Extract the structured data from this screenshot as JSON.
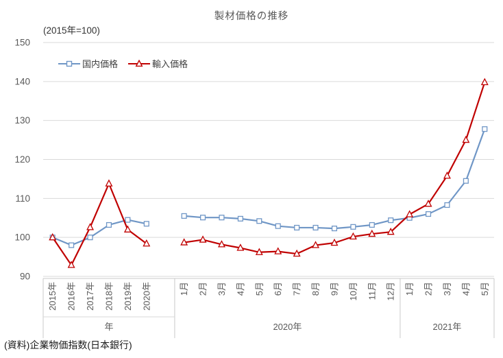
{
  "chart_data": {
    "type": "line",
    "title": "製材価格の推移",
    "note": "(2015年=100)",
    "source": "(資料)企業物価指数(日本銀行)",
    "ylim": [
      90,
      150
    ],
    "yticks": [
      90,
      100,
      110,
      120,
      130,
      140,
      150
    ],
    "grid": "horizontal",
    "legend_position": "top-left-inside",
    "groups": [
      {
        "label": "年",
        "categories": [
          "2015年",
          "2016年",
          "2017年",
          "2018年",
          "2019年",
          "2020年"
        ]
      },
      {
        "label": "2020年",
        "categories": [
          "1月",
          "2月",
          "3月",
          "4月",
          "5月",
          "6月",
          "7月",
          "8月",
          "9月",
          "10月",
          "11月",
          "12月"
        ]
      },
      {
        "label": "2021年",
        "categories": [
          "1月",
          "2月",
          "3月",
          "4月",
          "5月"
        ]
      }
    ],
    "series": [
      {
        "name": "国内価格",
        "marker": "square",
        "color": "#6F96C6",
        "values": [
          [
            100.0,
            98.0,
            100.0,
            103.2,
            104.5,
            103.5
          ],
          [
            105.5,
            105.1,
            105.1,
            104.8,
            104.2,
            102.9,
            102.5,
            102.5,
            102.3,
            102.7,
            103.2,
            104.4
          ],
          [
            105.0,
            106.0,
            108.3,
            114.5,
            127.8
          ]
        ]
      },
      {
        "name": "輸入価格",
        "marker": "triangle",
        "color": "#C00000",
        "values": [
          [
            100.0,
            92.9,
            102.6,
            113.8,
            102.0,
            98.4
          ],
          [
            98.7,
            99.4,
            98.2,
            97.3,
            96.2,
            96.4,
            95.8,
            98.0,
            98.6,
            100.2,
            100.9,
            101.4
          ],
          [
            105.9,
            108.6,
            115.8,
            125.0,
            139.8
          ]
        ]
      }
    ],
    "colors": {
      "gridline": "#D9D9D9",
      "axis": "#C9C9C9",
      "tick_text": "#595959"
    }
  }
}
